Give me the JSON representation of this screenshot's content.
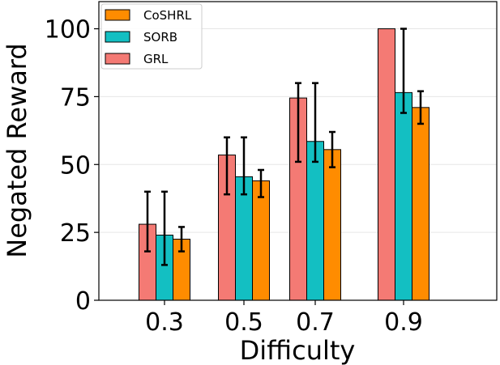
{
  "chart_data": {
    "type": "bar",
    "title": "",
    "xlabel": "Difficulty",
    "ylabel": "Negated Reward",
    "categories": [
      "0.3",
      "0.5",
      "0.7",
      "0.9"
    ],
    "ylim": [
      0,
      110
    ],
    "yticks": [
      0,
      25,
      50,
      75,
      100
    ],
    "grid": true,
    "legend_position": "top-left",
    "series": [
      {
        "name": "GRL",
        "color": "#f47a74",
        "values": [
          28,
          53.5,
          74.5,
          100
        ],
        "err_low": [
          18,
          39,
          51,
          100
        ],
        "err_high": [
          40,
          60,
          80,
          100
        ]
      },
      {
        "name": "SORB",
        "color": "#13bfc2",
        "values": [
          24,
          45.5,
          58.5,
          76.5
        ],
        "err_low": [
          13,
          39,
          51,
          69
        ],
        "err_high": [
          40,
          60,
          80,
          100
        ]
      },
      {
        "name": "CoSHRL",
        "color": "#ff8c00",
        "values": [
          22.5,
          44,
          55.5,
          71
        ],
        "err_low": [
          18,
          38,
          49,
          65
        ],
        "err_high": [
          27,
          48,
          62,
          77
        ]
      }
    ],
    "legend_order": [
      "CoSHRL",
      "SORB",
      "GRL"
    ]
  }
}
